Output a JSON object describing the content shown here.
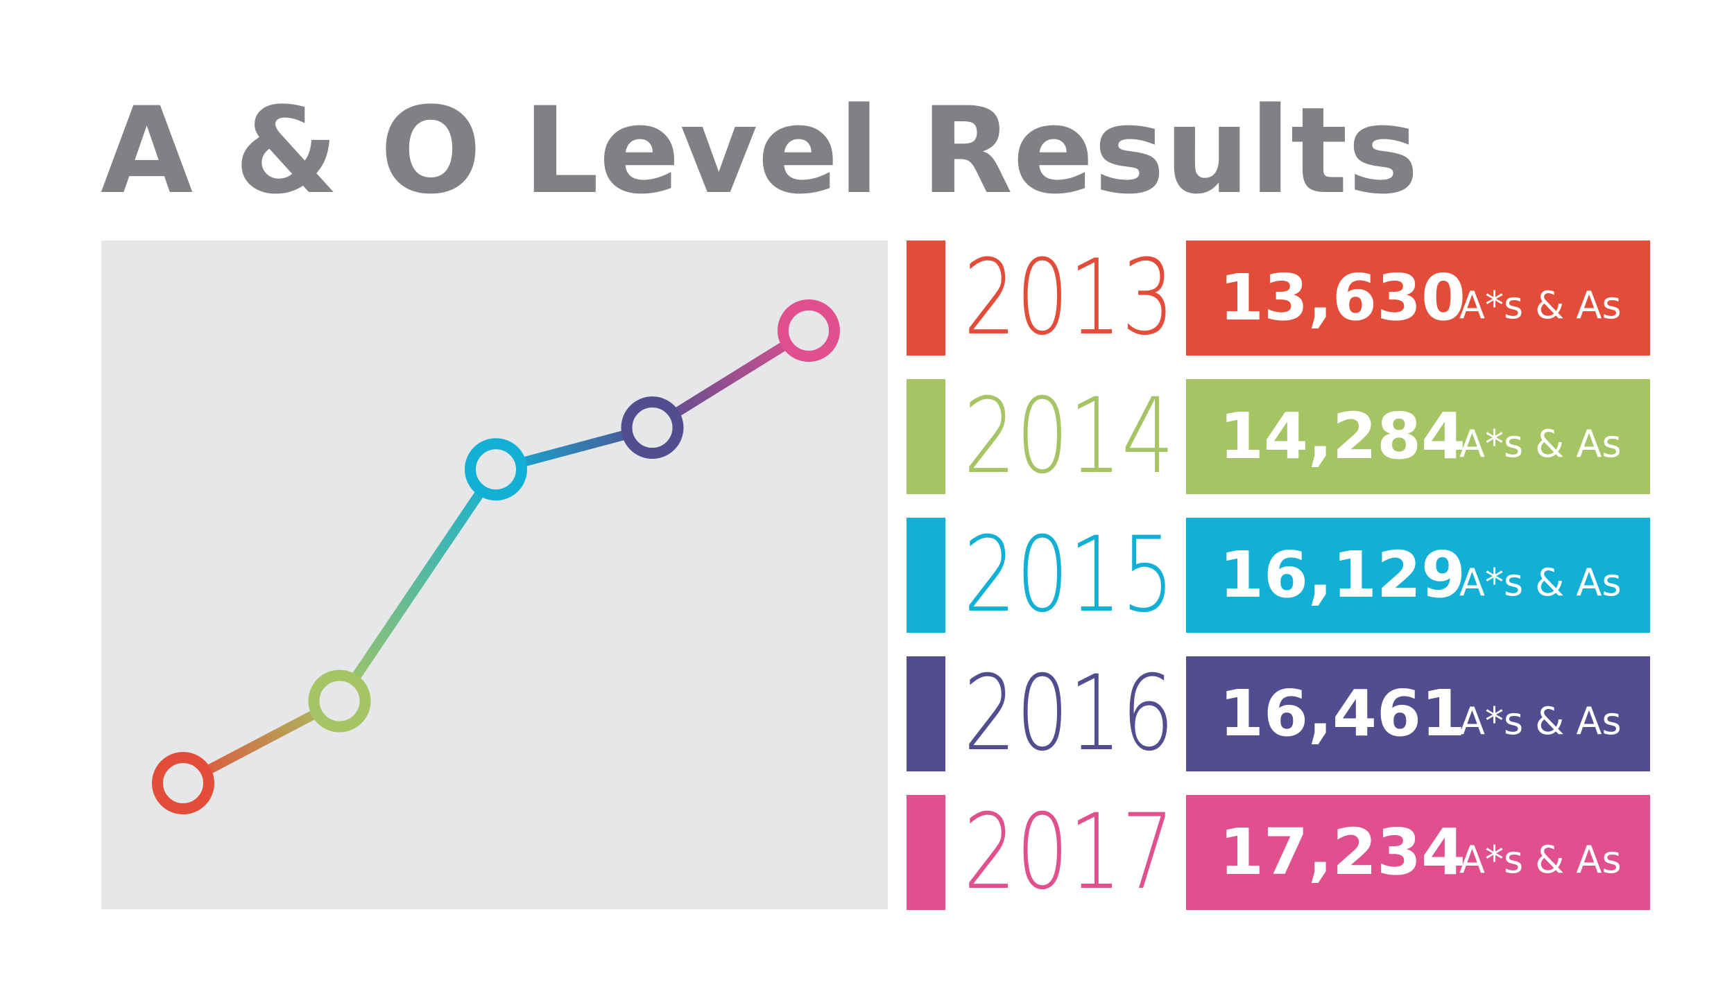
{
  "chart_data": {
    "type": "line",
    "title": "A & O Level Results",
    "categories": [
      "2013",
      "2014",
      "2015",
      "2016",
      "2017"
    ],
    "values": [
      13630,
      14284,
      16129,
      16461,
      17234
    ],
    "value_labels": [
      "13,630",
      "14,284",
      "16,129",
      "16,461",
      "17,234"
    ],
    "unit_label": "A*s & As",
    "colors": [
      "#e34c38",
      "#a5c463",
      "#12b0d4",
      "#524d8f",
      "#e0508e"
    ]
  }
}
